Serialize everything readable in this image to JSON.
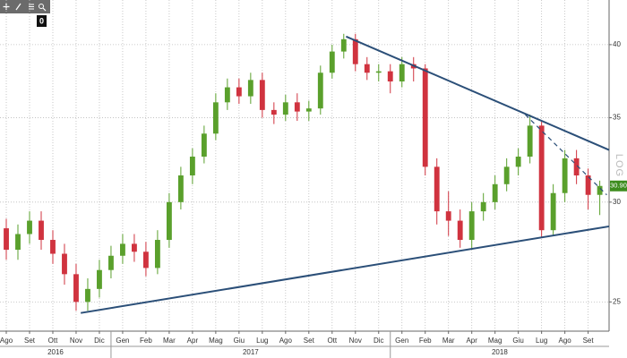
{
  "chart_data": {
    "type": "candlestick",
    "toolbar_badge": "0",
    "scale_label": "LOG",
    "x": [
      0,
      0.5,
      1,
      1.5,
      2,
      2.5,
      3,
      3.5,
      4,
      4.5,
      5,
      5.5,
      6,
      6.5,
      7,
      7.5,
      8,
      8.5,
      9,
      9.5,
      10,
      10.5,
      11,
      11.5,
      12,
      12.5,
      13,
      13.5,
      14,
      14.5,
      15,
      15.5,
      16,
      16.5,
      17,
      17.5,
      18,
      18.5,
      19,
      19.5,
      20,
      20.5,
      21,
      21.5,
      22,
      22.5,
      23,
      23.5,
      24,
      24.5,
      25,
      25.5
    ],
    "open": [
      28.6,
      27.5,
      28.3,
      29.0,
      28.0,
      27.3,
      26.3,
      25.0,
      25.6,
      26.5,
      27.2,
      27.8,
      27.4,
      26.6,
      28.0,
      30.0,
      31.5,
      32.6,
      34.0,
      36.0,
      37.0,
      36.4,
      37.5,
      35.5,
      35.2,
      36.0,
      35.4,
      35.6,
      38.0,
      39.5,
      40.4,
      38.6,
      38.0,
      38.1,
      37.4,
      38.6,
      38.3,
      32.0,
      29.5,
      29.0,
      28.0,
      29.5,
      30.0,
      31.0,
      32.0,
      32.6,
      34.5,
      28.5,
      30.5,
      32.5,
      31.5,
      30.4
    ],
    "high": [
      29.1,
      28.8,
      29.5,
      29.5,
      28.5,
      27.8,
      26.8,
      26.1,
      27.0,
      27.7,
      28.3,
      28.3,
      27.9,
      28.5,
      30.5,
      32.0,
      33.1,
      34.5,
      36.6,
      37.6,
      37.6,
      38.0,
      38.0,
      36.0,
      36.5,
      36.6,
      36.1,
      38.5,
      40.0,
      40.8,
      40.8,
      39.1,
      38.6,
      38.6,
      39.1,
      39.1,
      38.6,
      32.5,
      30.6,
      29.6,
      30.0,
      30.5,
      31.5,
      32.5,
      33.1,
      35.2,
      34.8,
      31.0,
      33.0,
      33.0,
      31.9,
      31.2
    ],
    "low": [
      27.0,
      27.0,
      27.8,
      27.5,
      26.8,
      25.8,
      24.6,
      24.6,
      25.2,
      26.1,
      26.8,
      26.9,
      26.2,
      26.3,
      27.6,
      29.6,
      31.0,
      32.2,
      33.6,
      35.5,
      35.9,
      35.9,
      35.0,
      34.6,
      34.8,
      34.8,
      34.8,
      35.2,
      37.6,
      39.0,
      38.1,
      37.5,
      37.4,
      36.6,
      37.0,
      37.4,
      31.5,
      28.8,
      28.2,
      27.6,
      27.5,
      29.0,
      29.6,
      30.6,
      31.5,
      32.2,
      28.1,
      28.2,
      30.0,
      31.0,
      29.6,
      29.3
    ],
    "close": [
      27.5,
      28.3,
      29.0,
      28.0,
      27.3,
      26.3,
      25.0,
      25.6,
      26.5,
      27.2,
      27.8,
      27.4,
      26.6,
      28.0,
      30.0,
      31.5,
      32.6,
      34.0,
      36.0,
      37.0,
      36.4,
      37.5,
      35.5,
      35.2,
      36.0,
      35.4,
      35.6,
      38.0,
      39.5,
      40.4,
      38.6,
      38.0,
      38.1,
      37.4,
      38.6,
      38.3,
      32.0,
      29.5,
      29.0,
      28.0,
      29.5,
      30.0,
      31.0,
      32.0,
      32.6,
      34.5,
      28.5,
      30.5,
      32.5,
      31.5,
      30.4,
      30.9
    ],
    "up_color": "#5aa02c",
    "down_color": "#d0333f",
    "last_value": 30.9,
    "last_value_label": "30.90",
    "last_value_color": "#3d8c1e",
    "trendlines": [
      {
        "x": [
          14.6,
          25.9
        ],
        "y": [
          40.6,
          33.0
        ],
        "style": "solid",
        "color": "#2b4f78"
      },
      {
        "x": [
          22.3,
          25.8
        ],
        "y": [
          35.2,
          30.4
        ],
        "style": "dashed",
        "color": "#2b4f78"
      },
      {
        "x": [
          3.2,
          25.9
        ],
        "y": [
          24.5,
          28.7
        ],
        "style": "solid",
        "color": "#2b4f78"
      }
    ],
    "xlim": [
      -0.27,
      25.9
    ],
    "xticks": [
      {
        "value": 0,
        "label": "Ago"
      },
      {
        "value": 1,
        "label": "Set"
      },
      {
        "value": 2,
        "label": "Ott"
      },
      {
        "value": 3,
        "label": "Nov"
      },
      {
        "value": 4,
        "label": "Dic"
      },
      {
        "value": 5,
        "label": "Gen"
      },
      {
        "value": 6,
        "label": "Feb"
      },
      {
        "value": 7,
        "label": "Mar"
      },
      {
        "value": 8,
        "label": "Apr"
      },
      {
        "value": 9,
        "label": "Mag"
      },
      {
        "value": 10,
        "label": "Giu"
      },
      {
        "value": 11,
        "label": "Lug"
      },
      {
        "value": 12,
        "label": "Ago"
      },
      {
        "value": 13,
        "label": "Set"
      },
      {
        "value": 14,
        "label": "Ott"
      },
      {
        "value": 15,
        "label": "Nov"
      },
      {
        "value": 16,
        "label": "Dic"
      },
      {
        "value": 17,
        "label": "Gen"
      },
      {
        "value": 18,
        "label": "Feb"
      },
      {
        "value": 19,
        "label": "Mar"
      },
      {
        "value": 20,
        "label": "Apr"
      },
      {
        "value": 21,
        "label": "Mag"
      },
      {
        "value": 22,
        "label": "Giu"
      },
      {
        "value": 23,
        "label": "Lug"
      },
      {
        "value": 24,
        "label": "Ago"
      },
      {
        "value": 25,
        "label": "Set"
      }
    ],
    "year_labels": [
      "2016",
      "2017",
      "2018"
    ],
    "ylim": [
      23.7,
      43.4
    ],
    "yticks": [
      25,
      30,
      35,
      40
    ],
    "log_scale": true,
    "grid": true
  }
}
